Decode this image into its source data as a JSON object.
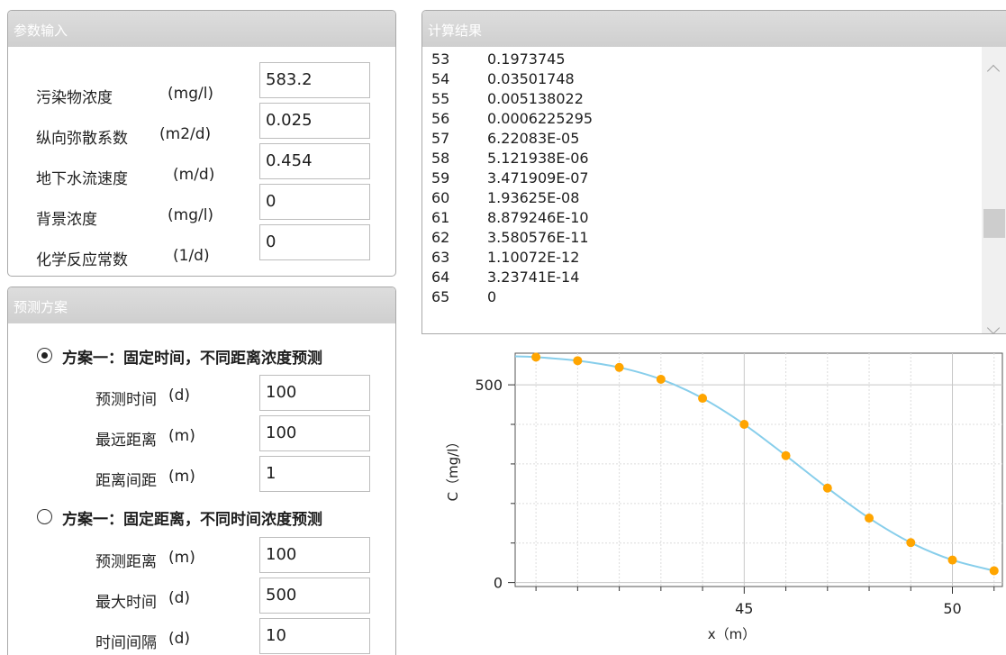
{
  "params": {
    "title": "参数输入",
    "rows": [
      {
        "label": "污染物浓度",
        "unit": "(mg/l)",
        "value": "583.2"
      },
      {
        "label": "纵向弥散系数",
        "unit": "(m2/d)",
        "value": "0.025"
      },
      {
        "label": "地下水流速度",
        "unit": "(m/d)",
        "value": "0.454"
      },
      {
        "label": "背景浓度",
        "unit": "(mg/l)",
        "value": "0"
      },
      {
        "label": "化学反应常数",
        "unit": "(1/d)",
        "value": "0"
      }
    ]
  },
  "scheme": {
    "title": "预测方案",
    "option1": {
      "label": "方案一：固定时间，不同距离浓度预测",
      "selected": true,
      "rows": [
        {
          "label": "预测时间",
          "unit": "(d)",
          "value": "100"
        },
        {
          "label": "最远距离",
          "unit": "(m)",
          "value": "100"
        },
        {
          "label": "距离间距",
          "unit": "(m)",
          "value": "1"
        }
      ]
    },
    "option2": {
      "label": "方案一：固定距离，不同时间浓度预测",
      "selected": false,
      "rows": [
        {
          "label": "预测距离",
          "unit": "(m)",
          "value": "100"
        },
        {
          "label": "最大时间",
          "unit": "(d)",
          "value": "500"
        },
        {
          "label": "时间间隔",
          "unit": "(d)",
          "value": "10"
        }
      ]
    }
  },
  "results": {
    "title": "计算结果",
    "rows": [
      {
        "idx": "53",
        "val": "0.1973745"
      },
      {
        "idx": "54",
        "val": "0.03501748"
      },
      {
        "idx": "55",
        "val": "0.005138022"
      },
      {
        "idx": "56",
        "val": "0.0006225295"
      },
      {
        "idx": "57",
        "val": "6.22083E-05"
      },
      {
        "idx": "58",
        "val": "5.121938E-06"
      },
      {
        "idx": "59",
        "val": "3.471909E-07"
      },
      {
        "idx": "60",
        "val": "1.93625E-08"
      },
      {
        "idx": "61",
        "val": "8.879246E-10"
      },
      {
        "idx": "62",
        "val": "3.580576E-11"
      },
      {
        "idx": "63",
        "val": "1.10072E-12"
      },
      {
        "idx": "64",
        "val": "3.23741E-14"
      },
      {
        "idx": "65",
        "val": "0"
      }
    ]
  },
  "colors": {
    "curve": "#87ceeb",
    "points": "#ffa500",
    "header": "#d6d6d6"
  },
  "chart_data": {
    "type": "line",
    "xlabel": "x（m）",
    "ylabel": "C（mg/l）",
    "x_ticks": [
      "45",
      "50"
    ],
    "y_ticks": [
      "0",
      "500"
    ],
    "xlim": [
      39.5,
      51.2
    ],
    "ylim": [
      -10,
      580
    ],
    "grid": true,
    "series": [
      {
        "x": [
          40,
          41,
          42,
          43,
          44,
          45,
          46,
          47,
          48,
          49,
          50,
          51
        ],
        "y": [
          570,
          561,
          544,
          514,
          466,
          400,
          321,
          239,
          163,
          101,
          57,
          30
        ]
      }
    ]
  }
}
